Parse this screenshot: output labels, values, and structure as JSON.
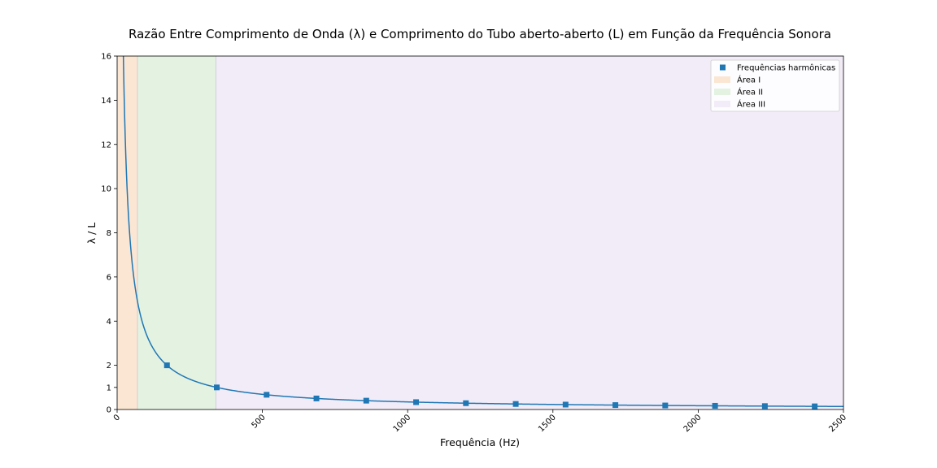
{
  "chart_data": {
    "type": "line",
    "title": "Razão Entre Comprimento de Onda (λ) e Comprimento do Tubo aberto-aberto (L) em Função da Frequência Sonora",
    "xlabel": "Frequência (Hz)",
    "ylabel": "λ / L",
    "xlim": [
      0,
      2500
    ],
    "ylim": [
      0,
      16
    ],
    "x_ticks": [
      0,
      500,
      1000,
      1500,
      2000,
      2500
    ],
    "x_tick_labels": [
      "0",
      "500",
      "1000",
      "1500",
      "2000",
      "2500"
    ],
    "y_ticks": [
      0,
      1,
      2,
      4,
      6,
      8,
      10,
      12,
      14,
      16
    ],
    "y_tick_labels": [
      "0",
      "1",
      "2",
      "4",
      "6",
      "8",
      "10",
      "12",
      "14",
      "16"
    ],
    "grid": false,
    "legend_position": "top-right",
    "curve": {
      "description_free": true,
      "constant": 343,
      "x_start": 20,
      "x_end": 2500
    },
    "series": [
      {
        "name": "Frequências harmônicas",
        "marker": "square",
        "color": "#1f77b4",
        "x": [
          171.5,
          343,
          514.5,
          686,
          857.5,
          1029,
          1200.5,
          1372,
          1543.5,
          1715,
          1886.5,
          2058,
          2229.5,
          2401
        ],
        "y": [
          2.0,
          1.0,
          0.667,
          0.5,
          0.4,
          0.333,
          0.286,
          0.25,
          0.222,
          0.2,
          0.182,
          0.167,
          0.154,
          0.143
        ]
      }
    ],
    "regions": [
      {
        "name": "Área I",
        "x_start": 0,
        "x_end": 70,
        "color": "#fbe6d3"
      },
      {
        "name": "Área II",
        "x_start": 70,
        "x_end": 340,
        "color": "#e4f2e2"
      },
      {
        "name": "Área III",
        "x_start": 340,
        "x_end": 2500,
        "color": "#f2ecf8"
      }
    ],
    "line_color": "#1f77b4"
  }
}
